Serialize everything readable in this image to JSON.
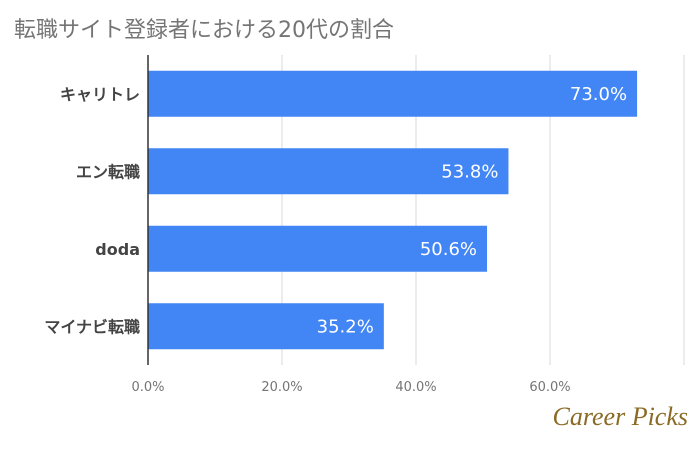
{
  "chart_data": {
    "type": "bar",
    "orientation": "horizontal",
    "title": "転職サイト登録者における20代の割合",
    "categories": [
      "キャリトレ",
      "エン転職",
      "doda",
      "マイナビ転職"
    ],
    "values": [
      73.0,
      53.8,
      50.6,
      35.2
    ],
    "value_labels": [
      "73.0%",
      "53.8%",
      "50.6%",
      "35.2%"
    ],
    "xlim": [
      0,
      80
    ],
    "x_ticks": [
      0,
      20,
      40,
      60
    ],
    "x_tick_labels": [
      "0.0%",
      "20.0%",
      "40.0%",
      "60.0%"
    ],
    "xlabel": "",
    "ylabel": "",
    "grid": true,
    "legend": "none",
    "bar_color": "#4285f4"
  },
  "watermark": "Career Picks"
}
